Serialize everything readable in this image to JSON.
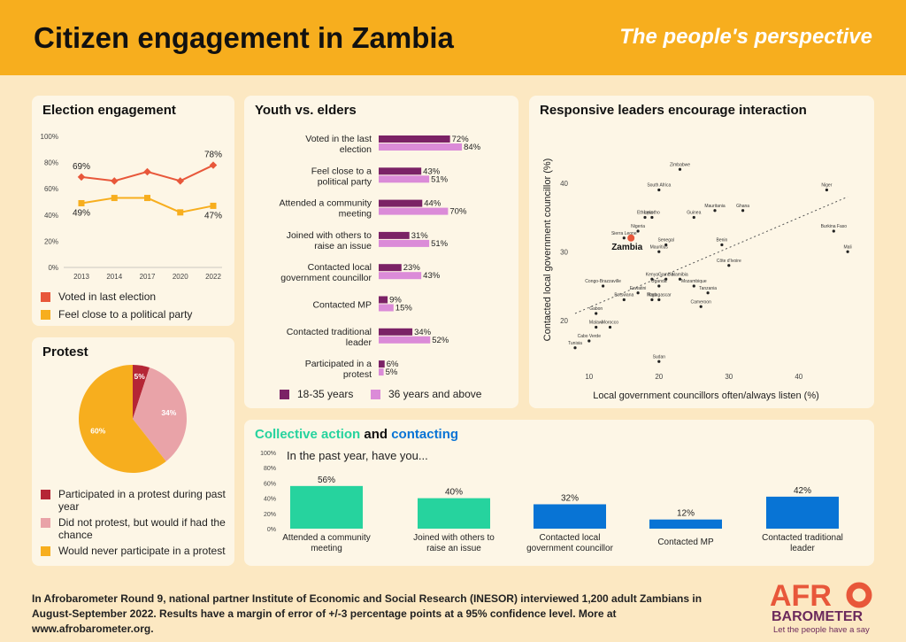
{
  "header": {
    "title": "Citizen engagement in Zambia",
    "subtitle": "The people's perspective"
  },
  "colors": {
    "orange": "#F7AE1E",
    "red_orange": "#E8573A",
    "purple": "#7B2266",
    "pink": "#DB8BD8",
    "teal": "#26D39E",
    "blue": "#0874D5",
    "dark_red": "#B52636",
    "light_pink": "#E9A3A8"
  },
  "election": {
    "title": "Election engagement",
    "legend": [
      "Voted in last election",
      "Feel close to a political party"
    ]
  },
  "youth": {
    "title": "Youth vs. elders",
    "legend": [
      "18-35 years",
      "36 years and above"
    ]
  },
  "protest": {
    "title": "Protest",
    "legend": [
      "Participated in a protest during past year",
      "Did not protest, but would if had the chance",
      "Would never participate in a protest"
    ]
  },
  "scatter": {
    "title": "Responsive leaders encourage interaction",
    "xlabel": "Local government councillors often/always listen (%)",
    "ylabel": "Contacted local government councillor (%)",
    "highlight": "Zambia"
  },
  "collective": {
    "title_part1": "Collective action",
    "title_and": " and ",
    "title_part2": "contacting",
    "question": "In the past year, have you..."
  },
  "footer": {
    "text": "In Afrobarometer Round 9, national partner Institute of Economic and Social Research (INESOR) interviewed 1,200 adult Zambians in August-September 2022. Results have a margin of error of +/-3 percentage points at a 95% confidence level. More at www.afrobarometer.org."
  },
  "logo": {
    "word_top": "AFR",
    "word_bottom": "BAROMETER",
    "tagline": "Let the people have a say"
  },
  "chart_data": [
    {
      "type": "line",
      "title": "Election engagement",
      "x": [
        "2013",
        "2014",
        "2017",
        "2020",
        "2022"
      ],
      "yticks": [
        "0%",
        "20%",
        "40%",
        "60%",
        "80%",
        "100%"
      ],
      "ylim": [
        0,
        100
      ],
      "series": [
        {
          "name": "Voted in last election",
          "values": [
            69,
            66,
            73,
            66,
            78
          ],
          "labels": [
            "69%",
            "",
            "",
            "",
            "78%"
          ]
        },
        {
          "name": "Feel close to a political party",
          "values": [
            49,
            53,
            53,
            42,
            47
          ],
          "labels": [
            "49%",
            "",
            "",
            "",
            "47%"
          ]
        }
      ]
    },
    {
      "type": "bar",
      "title": "Youth vs. elders",
      "categories": [
        "Voted in the last election",
        "Feel close to a political party",
        "Attended a community meeting",
        "Joined with others to raise an issue",
        "Contacted local government councillor",
        "Contacted MP",
        "Contacted traditional leader",
        "Participated in a protest"
      ],
      "series": [
        {
          "name": "18-35 years",
          "values": [
            72,
            43,
            44,
            31,
            23,
            9,
            34,
            6
          ]
        },
        {
          "name": "36 years and above",
          "values": [
            84,
            51,
            70,
            51,
            43,
            15,
            52,
            5
          ]
        }
      ]
    },
    {
      "type": "pie",
      "title": "Protest",
      "labels": [
        "Participated in a protest during past year",
        "Did not protest, but would if had the chance",
        "Would never participate in a protest"
      ],
      "values": [
        5,
        34,
        60
      ],
      "value_labels": [
        "5%",
        "34%",
        "60%"
      ]
    },
    {
      "type": "scatter",
      "title": "Responsive leaders encourage interaction",
      "xlabel": "Local government councillors often/always listen (%)",
      "ylabel": "Contacted local government councillor (%)",
      "xticks": [
        "10",
        "20",
        "30",
        "40"
      ],
      "yticks": [
        "20",
        "30",
        "40"
      ],
      "xlim": [
        8,
        48
      ],
      "ylim": [
        13,
        45
      ],
      "trendline": [
        [
          8,
          21
        ],
        [
          47,
          38
        ]
      ],
      "points": [
        {
          "label": "Zimbabwe",
          "x": 23,
          "y": 42
        },
        {
          "label": "South Africa",
          "x": 20,
          "y": 39
        },
        {
          "label": "Niger",
          "x": 44,
          "y": 39
        },
        {
          "label": "Mauritania",
          "x": 28,
          "y": 36
        },
        {
          "label": "Ghana",
          "x": 32,
          "y": 36
        },
        {
          "label": "Lesotho",
          "x": 19,
          "y": 35
        },
        {
          "label": "Ethiopia",
          "x": 18,
          "y": 35
        },
        {
          "label": "Guinea",
          "x": 25,
          "y": 35
        },
        {
          "label": "Nigeria",
          "x": 17,
          "y": 33
        },
        {
          "label": "Burkina Faso",
          "x": 45,
          "y": 33
        },
        {
          "label": "Sierra Leone",
          "x": 15,
          "y": 32
        },
        {
          "label": "Zambia",
          "x": 16,
          "y": 32
        },
        {
          "label": "Senegal",
          "x": 21,
          "y": 31
        },
        {
          "label": "Benin",
          "x": 29,
          "y": 31
        },
        {
          "label": "Mauritius",
          "x": 20,
          "y": 30
        },
        {
          "label": "Mali",
          "x": 47,
          "y": 30
        },
        {
          "label": "Côte d'Ivoire",
          "x": 30,
          "y": 28
        },
        {
          "label": "Kenya",
          "x": 19,
          "y": 26
        },
        {
          "label": "Gambia",
          "x": 21,
          "y": 26
        },
        {
          "label": "Namibia",
          "x": 23,
          "y": 26
        },
        {
          "label": "Uganda",
          "x": 20,
          "y": 25
        },
        {
          "label": "Mozambique",
          "x": 25,
          "y": 25
        },
        {
          "label": "Congo-Brazzaville",
          "x": 12,
          "y": 25
        },
        {
          "label": "Eswatini",
          "x": 17,
          "y": 24
        },
        {
          "label": "Tanzania",
          "x": 27,
          "y": 24
        },
        {
          "label": "Madagascar",
          "x": 20,
          "y": 23
        },
        {
          "label": "Botswana",
          "x": 15,
          "y": 23
        },
        {
          "label": "Togo",
          "x": 19,
          "y": 23
        },
        {
          "label": "Cameroon",
          "x": 26,
          "y": 22
        },
        {
          "label": "Gabon",
          "x": 11,
          "y": 21
        },
        {
          "label": "Malawi",
          "x": 11,
          "y": 19
        },
        {
          "label": "Morocco",
          "x": 13,
          "y": 19
        },
        {
          "label": "Cabo Verde",
          "x": 10,
          "y": 17
        },
        {
          "label": "Tunisia",
          "x": 8,
          "y": 16
        },
        {
          "label": "Sudan",
          "x": 20,
          "y": 14
        }
      ]
    },
    {
      "type": "bar",
      "title": "Collective action and contacting",
      "categories": [
        "Attended a community meeting",
        "Joined with others to raise an issue",
        "Contacted local government councillor",
        "Contacted MP",
        "Contacted traditional leader"
      ],
      "values": [
        56,
        40,
        32,
        12,
        42
      ],
      "value_labels": [
        "56%",
        "40%",
        "32%",
        "12%",
        "42%"
      ],
      "yticks": [
        "0%",
        "20%",
        "40%",
        "60%",
        "80%",
        "100%"
      ],
      "ylim": [
        0,
        100
      ]
    }
  ]
}
